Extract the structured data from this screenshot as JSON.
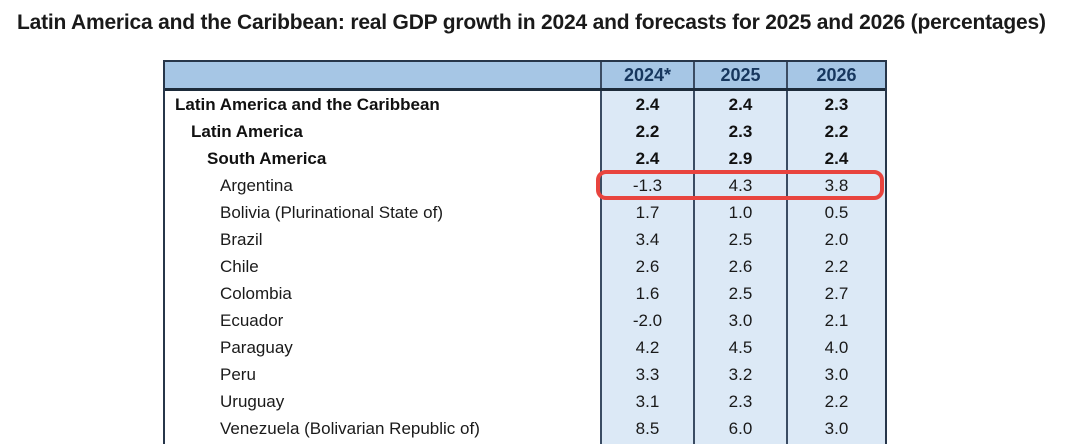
{
  "chart_data": {
    "type": "table",
    "title": "Latin America and the Caribbean: real GDP growth in 2024 and forecasts for 2025 and 2026 (percentages)",
    "columns": [
      "",
      "2024*",
      "2025",
      "2026"
    ],
    "rows": [
      {
        "label": "Latin America and the Caribbean",
        "indent": 0,
        "bold": true,
        "values": [
          "2.4",
          "2.4",
          "2.3"
        ]
      },
      {
        "label": "Latin America",
        "indent": 1,
        "bold": true,
        "values": [
          "2.2",
          "2.3",
          "2.2"
        ]
      },
      {
        "label": "South America",
        "indent": 2,
        "bold": true,
        "values": [
          "2.4",
          "2.9",
          "2.4"
        ]
      },
      {
        "label": "Argentina",
        "indent": 3,
        "bold": false,
        "values": [
          "-1.3",
          "4.3",
          "3.8"
        ],
        "highlighted": true
      },
      {
        "label": "Bolivia (Plurinational State of)",
        "indent": 3,
        "bold": false,
        "values": [
          "1.7",
          "1.0",
          "0.5"
        ]
      },
      {
        "label": "Brazil",
        "indent": 3,
        "bold": false,
        "values": [
          "3.4",
          "2.5",
          "2.0"
        ]
      },
      {
        "label": "Chile",
        "indent": 3,
        "bold": false,
        "values": [
          "2.6",
          "2.6",
          "2.2"
        ]
      },
      {
        "label": "Colombia",
        "indent": 3,
        "bold": false,
        "values": [
          "1.6",
          "2.5",
          "2.7"
        ]
      },
      {
        "label": "Ecuador",
        "indent": 3,
        "bold": false,
        "values": [
          "-2.0",
          "3.0",
          "2.1"
        ]
      },
      {
        "label": "Paraguay",
        "indent": 3,
        "bold": false,
        "values": [
          "4.2",
          "4.5",
          "4.0"
        ]
      },
      {
        "label": "Peru",
        "indent": 3,
        "bold": false,
        "values": [
          "3.3",
          "3.2",
          "3.0"
        ]
      },
      {
        "label": "Uruguay",
        "indent": 3,
        "bold": false,
        "values": [
          "3.1",
          "2.3",
          "2.2"
        ]
      },
      {
        "label": "Venezuela (Bolivarian Republic of)",
        "indent": 3,
        "bold": false,
        "values": [
          "8.5",
          "6.0",
          "3.0"
        ]
      }
    ],
    "annotation": {
      "type": "highlight-box",
      "row": "Argentina",
      "color": "#e8443e"
    },
    "layout": {
      "header_bg": "#a6c6e5",
      "body_cell_bg": "#dce9f6",
      "border_color": "#27364a",
      "header_text_color": "#17375e",
      "grid": "vertical-only"
    }
  }
}
